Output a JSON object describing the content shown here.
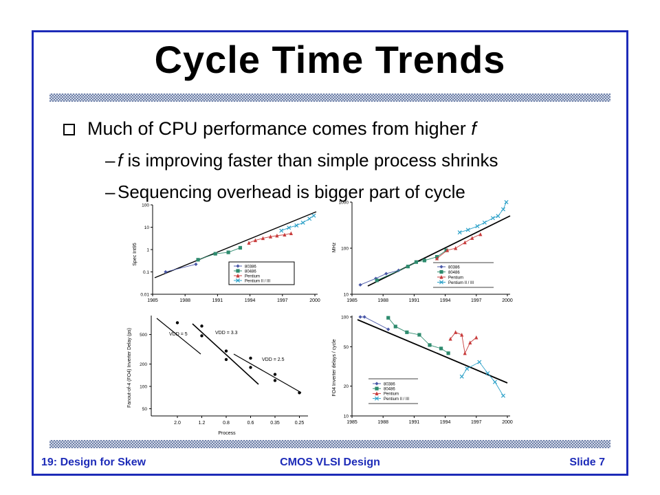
{
  "slide": {
    "title": "Cycle Time Trends",
    "bullet": {
      "text_before": "Much of CPU performance comes from higher ",
      "var": "f"
    },
    "sub1": {
      "var": "f",
      "text": " is improving faster than simple process shrinks"
    },
    "sub2": {
      "text": "Sequencing overhead is bigger part of cycle"
    },
    "footer": {
      "left": "19: Design for Skew",
      "center": "CMOS VLSI Design",
      "right": "Slide 7"
    }
  },
  "colors": {
    "frame": "#1d2bb8",
    "footer": "#1d2bb8",
    "s80386": "#4a58a8",
    "s80486": "#2e8b6e",
    "pentium": "#c83c3c",
    "pentium23": "#2aa0c8"
  },
  "chart_data": [
    {
      "type": "scatter",
      "ylabel": "Spec Int95",
      "xticks": [
        "1985",
        "1988",
        "1991",
        "1994",
        "1997",
        "2000"
      ],
      "yticks": [
        "0.01",
        "0.1",
        "1",
        "10",
        "100"
      ],
      "legend": [
        "80386",
        "80486",
        "Pentium",
        "Pentium II / III"
      ],
      "series": [
        {
          "name": "80386",
          "x": [
            1986.2,
            1989.0
          ],
          "y": [
            0.1,
            0.22
          ]
        },
        {
          "name": "80486",
          "x": [
            1989.2,
            1990.8,
            1992.0,
            1993.1
          ],
          "y": [
            0.35,
            0.65,
            0.75,
            1.2
          ]
        },
        {
          "name": "Pentium",
          "x": [
            1993.9,
            1994.5,
            1995.2,
            1995.9,
            1996.5,
            1997.2,
            1997.8
          ],
          "y": [
            2.0,
            2.6,
            3.2,
            3.8,
            4.2,
            4.6,
            5.3
          ]
        },
        {
          "name": "Pentium II / III",
          "x": [
            1996.9,
            1997.6,
            1998.3,
            1998.9,
            1999.5,
            1999.9
          ],
          "y": [
            7.0,
            9.5,
            12,
            16,
            24,
            33
          ]
        }
      ]
    },
    {
      "type": "scatter",
      "ylabel": "MHz",
      "xticks": [
        "1985",
        "1988",
        "1991",
        "1994",
        "1997",
        "2000"
      ],
      "yticks": [
        "10",
        "100",
        "1000"
      ],
      "legend": [
        "80386",
        "80486",
        "Pentium",
        "Pentium II / III"
      ],
      "series": [
        {
          "name": "80386",
          "x": [
            1985.8,
            1987.3,
            1988.3,
            1989.5
          ],
          "y": [
            16,
            22,
            28,
            33
          ]
        },
        {
          "name": "80486",
          "x": [
            1987.4,
            1990.4,
            1991.2,
            1992.0,
            1993.2,
            1994.1
          ],
          "y": [
            20,
            40,
            50,
            54,
            65,
            90
          ]
        },
        {
          "name": "Pentium",
          "x": [
            1993.2,
            1994.2,
            1995.0,
            1995.9,
            1996.6,
            1997.4
          ],
          "y": [
            60,
            90,
            100,
            133,
            166,
            200
          ]
        },
        {
          "name": "Pentium II / III",
          "x": [
            1995.4,
            1996.2,
            1997.1,
            1997.8,
            1998.6,
            1999.1,
            1999.6,
            1999.9
          ],
          "y": [
            220,
            250,
            300,
            360,
            450,
            500,
            700,
            1000
          ]
        }
      ]
    },
    {
      "type": "scatter",
      "ylabel": "Fanout-of-4 (FO4) Inverter Delay (ps)",
      "xlabel": "Process",
      "xticks": [
        "2.0",
        "1.2",
        "0.8",
        "0.6",
        "0.35",
        "0.25"
      ],
      "yticks": [
        "50",
        "100",
        "200",
        "500"
      ],
      "annotations": [
        "VDD = 5",
        "VDD = 3.3",
        "VDD = 2.5"
      ],
      "series": [
        {
          "name": "points",
          "x": [
            "2.0",
            "1.2",
            "1.2",
            "0.8",
            "0.8",
            "0.6",
            "0.6",
            "0.35",
            "0.35",
            "0.25"
          ],
          "y": [
            720,
            650,
            480,
            300,
            230,
            240,
            180,
            145,
            120,
            82
          ]
        }
      ]
    },
    {
      "type": "scatter",
      "ylabel": "FO4 Inverter delays / cycle",
      "xticks": [
        "1985",
        "1988",
        "1991",
        "1994",
        "1997",
        "2000"
      ],
      "yticks": [
        "10",
        "20",
        "50",
        "100"
      ],
      "legend": [
        "80386",
        "80486",
        "Pentium",
        "Pentium II / III"
      ],
      "series": [
        {
          "name": "80386",
          "x": [
            1985.8,
            1986.2,
            1988.5
          ],
          "y": [
            100,
            100,
            75
          ]
        },
        {
          "name": "80486",
          "x": [
            1988.5,
            1989.2,
            1990.3,
            1991.5,
            1992.5,
            1993.6,
            1994.3
          ],
          "y": [
            98,
            80,
            70,
            66,
            52,
            48,
            43
          ]
        },
        {
          "name": "Pentium",
          "x": [
            1994.5,
            1995.0,
            1995.6,
            1995.9,
            1996.4,
            1997.0
          ],
          "y": [
            60,
            70,
            66,
            43,
            55,
            62
          ]
        },
        {
          "name": "Pentium II / III",
          "x": [
            1995.6,
            1996.1,
            1997.3,
            1998.1,
            1998.8,
            1999.6
          ],
          "y": [
            25,
            30,
            35,
            27,
            22,
            16
          ]
        }
      ]
    }
  ]
}
